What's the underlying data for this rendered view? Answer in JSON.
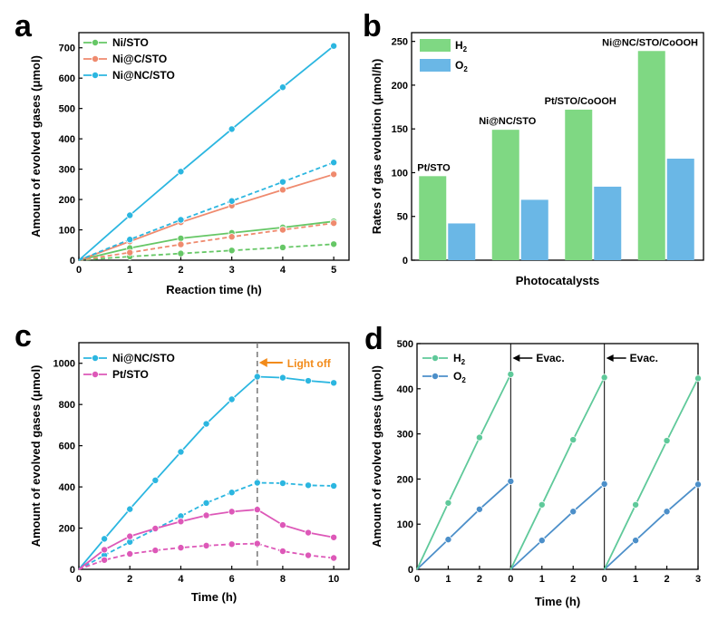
{
  "panels": {
    "a": {
      "letter": "a"
    },
    "b": {
      "letter": "b"
    },
    "c": {
      "letter": "c"
    },
    "d": {
      "letter": "d"
    }
  },
  "colors": {
    "green": "#66c766",
    "red": "#ef8a6e",
    "cyan": "#2bb6e0",
    "magenta": "#dd58b8",
    "bar_h2": "#7fd883",
    "bar_o2": "#6ab7e6",
    "orange": "#f28b1a",
    "d_h2": "#5fc99a",
    "d_o2": "#4c8fc9"
  },
  "chart_data": [
    {
      "id": "a",
      "type": "line",
      "xlabel": "Reaction time (h)",
      "ylabel": "Amount of evolved gases (μmol)",
      "xlim": [
        0,
        5.3
      ],
      "ylim": [
        0,
        750
      ],
      "xticks": [
        0,
        1,
        2,
        3,
        4,
        5
      ],
      "yticks": [
        0,
        100,
        200,
        300,
        400,
        500,
        600,
        700
      ],
      "legend": [
        "Ni/STO",
        "Ni@C/STO",
        "Ni@NC/STO"
      ],
      "x": [
        0,
        1,
        2,
        3,
        4,
        5
      ],
      "series": [
        {
          "name": "Ni/STO H2",
          "color": "green",
          "dashed": false,
          "values": [
            0,
            40,
            72,
            90,
            108,
            128
          ]
        },
        {
          "name": "Ni/STO O2",
          "color": "green",
          "dashed": true,
          "values": [
            0,
            12,
            22,
            32,
            42,
            53
          ]
        },
        {
          "name": "Ni@C/STO H2",
          "color": "red",
          "dashed": false,
          "values": [
            0,
            62,
            125,
            180,
            232,
            283
          ]
        },
        {
          "name": "Ni@C/STO O2",
          "color": "red",
          "dashed": true,
          "values": [
            0,
            25,
            52,
            77,
            100,
            122
          ]
        },
        {
          "name": "Ni@NC/STO H2",
          "color": "cyan",
          "dashed": false,
          "values": [
            0,
            148,
            292,
            432,
            570,
            706
          ]
        },
        {
          "name": "Ni@NC/STO O2",
          "color": "cyan",
          "dashed": true,
          "values": [
            0,
            68,
            133,
            195,
            258,
            322
          ]
        }
      ]
    },
    {
      "id": "b",
      "type": "bar",
      "xlabel": "Photocatalysts",
      "ylabel": "Rates of gas evolution (μmol/h)",
      "ylim": [
        0,
        260
      ],
      "yticks": [
        0,
        50,
        100,
        150,
        200,
        250
      ],
      "categories": [
        "Pt/STO",
        "Ni@NC/STO",
        "Pt/STO/CoOOH",
        "Ni@NC/STO/CoOOH"
      ],
      "legend": [
        "H",
        "O"
      ],
      "legend_sub": "2",
      "series": [
        {
          "name": "H2",
          "color": "bar_h2",
          "values": [
            96,
            149,
            172,
            239
          ]
        },
        {
          "name": "O2",
          "color": "bar_o2",
          "values": [
            42,
            69,
            84,
            116
          ]
        }
      ]
    },
    {
      "id": "c",
      "type": "line",
      "xlabel": "Time (h)",
      "ylabel": "Amount of evolved gases (μmol)",
      "xlim": [
        0,
        10.6
      ],
      "ylim": [
        0,
        1100
      ],
      "xticks": [
        0,
        2,
        4,
        6,
        8,
        10
      ],
      "yticks": [
        0,
        200,
        400,
        600,
        800,
        1000
      ],
      "legend": [
        "Ni@NC/STO",
        "Pt/STO"
      ],
      "annotation": "Light off",
      "light_off_x": 7,
      "x": [
        0,
        1,
        2,
        3,
        4,
        5,
        6,
        7,
        8,
        9,
        10
      ],
      "series": [
        {
          "name": "Ni@NC/STO H2",
          "color": "cyan",
          "dashed": false,
          "values": [
            0,
            148,
            292,
            432,
            570,
            706,
            825,
            935,
            930,
            915,
            905
          ]
        },
        {
          "name": "Ni@NC/STO O2",
          "color": "cyan",
          "dashed": true,
          "values": [
            0,
            68,
            133,
            195,
            258,
            322,
            373,
            420,
            418,
            408,
            405
          ]
        },
        {
          "name": "Pt/STO H2",
          "color": "magenta",
          "dashed": false,
          "values": [
            0,
            95,
            160,
            198,
            232,
            262,
            280,
            290,
            215,
            178,
            155
          ]
        },
        {
          "name": "Pt/STO O2",
          "color": "magenta",
          "dashed": true,
          "values": [
            0,
            45,
            75,
            92,
            105,
            115,
            122,
            125,
            88,
            68,
            55
          ]
        }
      ]
    },
    {
      "id": "d",
      "type": "line",
      "xlabel": "Time (h)",
      "ylabel": "Amount of evolved gases (μmol)",
      "ylim": [
        0,
        500
      ],
      "yticks": [
        0,
        100,
        200,
        300,
        400,
        500
      ],
      "xtick_labels": [
        "0",
        "1",
        "2",
        "0",
        "1",
        "2",
        "0",
        "1",
        "2",
        "3"
      ],
      "legend": [
        "H",
        "O"
      ],
      "legend_sub": "2",
      "annotation": "Evac.",
      "cycles": [
        {
          "H2": [
            0,
            147,
            292,
            432
          ],
          "O2": [
            0,
            66,
            133,
            195
          ]
        },
        {
          "H2": [
            0,
            143,
            287,
            425
          ],
          "O2": [
            0,
            64,
            128,
            189
          ]
        },
        {
          "H2": [
            0,
            143,
            285,
            423
          ],
          "O2": [
            0,
            64,
            128,
            188
          ]
        }
      ]
    }
  ]
}
